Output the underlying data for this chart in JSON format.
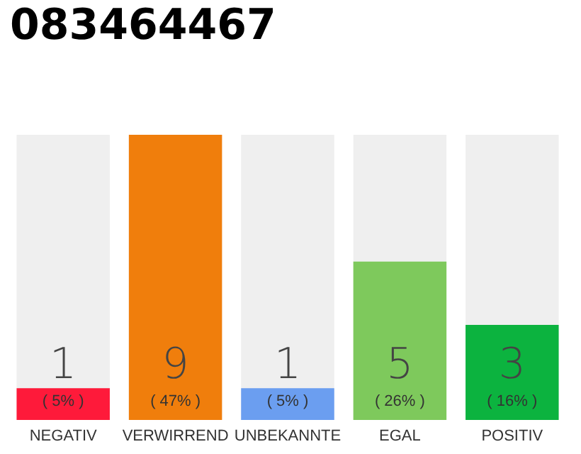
{
  "chart_data": {
    "type": "bar",
    "title": "083464467",
    "categories": [
      "NEGATIV",
      "VERWIRREND",
      "UNBEKANNTE",
      "EGAL",
      "POSITIV"
    ],
    "values": [
      1,
      9,
      1,
      5,
      3
    ],
    "colors": [
      "#fe1a3a",
      "#f07e0c",
      "#6b9ef0",
      "#7ec95c",
      "#0cb33f"
    ],
    "data_labels": true,
    "annotations": [
      "( 5% )",
      "( 47% )",
      "( 5% )",
      "( 26% )",
      "( 16% )"
    ]
  }
}
